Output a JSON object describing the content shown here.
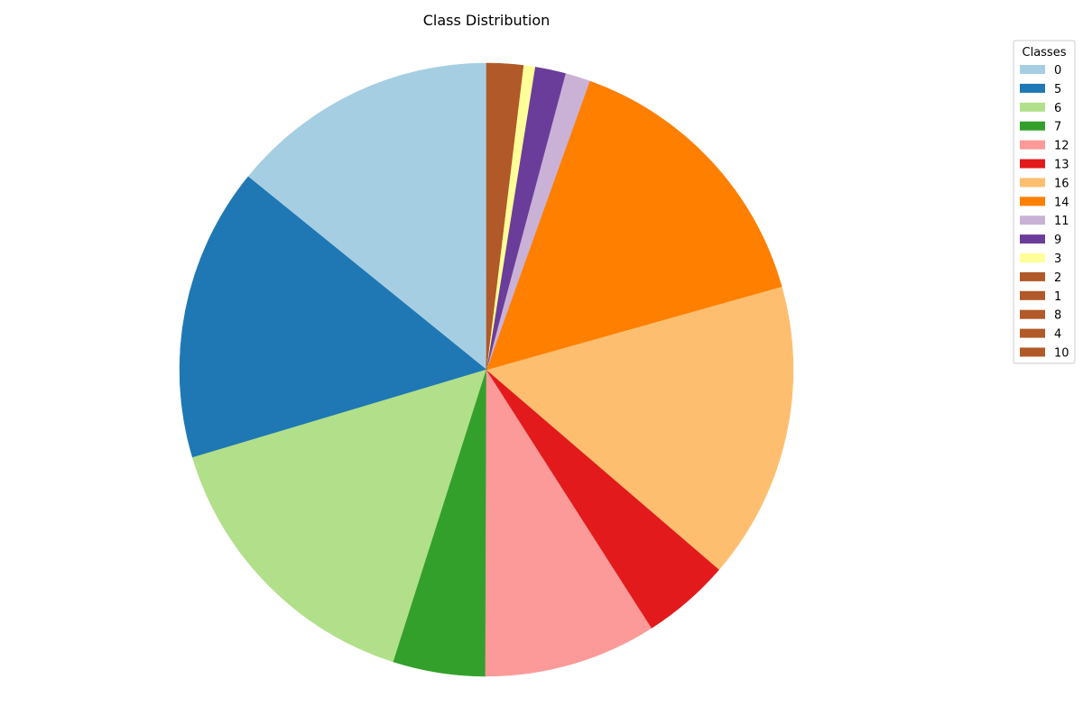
{
  "chart_data": {
    "type": "pie",
    "title": "Class Distribution",
    "legend_title": "Classes",
    "legend_position": "top-right",
    "start_angle_deg": 90,
    "direction": "counterclockwise",
    "slices": [
      {
        "label": "0",
        "value": 14.0,
        "color": "#a6cee3"
      },
      {
        "label": "5",
        "value": 15.3,
        "color": "#1f78b4"
      },
      {
        "label": "6",
        "value": 15.3,
        "color": "#b2df8a"
      },
      {
        "label": "7",
        "value": 4.8,
        "color": "#33a02c"
      },
      {
        "label": "12",
        "value": 9.0,
        "color": "#fb9a99"
      },
      {
        "label": "13",
        "value": 4.6,
        "color": "#e31a1c"
      },
      {
        "label": "16",
        "value": 15.5,
        "color": "#fdbf6f"
      },
      {
        "label": "14",
        "value": 15.0,
        "color": "#ff7f00"
      },
      {
        "label": "11",
        "value": 1.3,
        "color": "#cab2d6"
      },
      {
        "label": "9",
        "value": 1.6,
        "color": "#6a3d9a"
      },
      {
        "label": "3",
        "value": 0.6,
        "color": "#ffff99"
      },
      {
        "label": "2",
        "value": 1.0,
        "color": "#b15928"
      },
      {
        "label": "1",
        "value": 0.2,
        "color": "#b15928"
      },
      {
        "label": "8",
        "value": 0.3,
        "color": "#b15928"
      },
      {
        "label": "4",
        "value": 0.2,
        "color": "#b15928"
      },
      {
        "label": "10",
        "value": 0.2,
        "color": "#b15928"
      }
    ]
  }
}
